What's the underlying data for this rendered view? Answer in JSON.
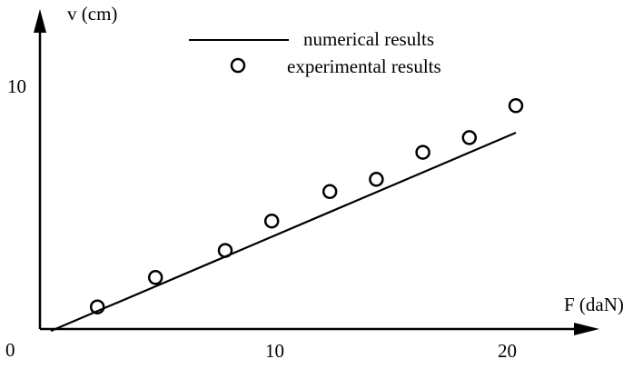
{
  "chart_data": {
    "type": "scatter",
    "xlabel": "F (daN)",
    "ylabel": "v (cm)",
    "origin_label": "0",
    "xlim": [
      0,
      25
    ],
    "ylim": [
      0,
      12
    ],
    "x_ticks": [
      10,
      20
    ],
    "x_tick_labels": [
      "10",
      "20"
    ],
    "y_ticks": [
      10
    ],
    "y_tick_labels": [
      "10"
    ],
    "grid": false,
    "legend_position": "top-center",
    "series": [
      {
        "name": "numerical results",
        "style": "line",
        "color": "#000000",
        "x": [
          0,
          20
        ],
        "y": [
          -0.08,
          8.0
        ]
      },
      {
        "name": "experimental results",
        "style": "open-circle",
        "color": "#000000",
        "x": [
          2.0,
          4.5,
          7.5,
          9.5,
          12.0,
          14.0,
          16.0,
          18.0,
          20.0
        ],
        "y": [
          0.9,
          2.1,
          3.2,
          4.4,
          5.6,
          6.1,
          7.2,
          7.8,
          9.1
        ]
      }
    ]
  }
}
